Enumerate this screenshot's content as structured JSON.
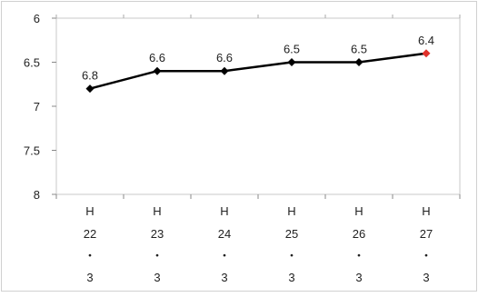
{
  "chart_data": {
    "type": "line",
    "title": "",
    "xlabel": "",
    "ylabel": "",
    "y_axis_inverted": true,
    "ylim": [
      6,
      8
    ],
    "yticks": [
      "6",
      "6.5",
      "7",
      "7.5",
      "8"
    ],
    "grid": false,
    "legend": "none",
    "categories": [
      [
        "H",
        "22",
        "・",
        "3"
      ],
      [
        "H",
        "23",
        "・",
        "3"
      ],
      [
        "H",
        "24",
        "・",
        "3"
      ],
      [
        "H",
        "25",
        "・",
        "3"
      ],
      [
        "H",
        "26",
        "・",
        "3"
      ],
      [
        "H",
        "27",
        "・",
        "3"
      ]
    ],
    "series": [
      {
        "values": [
          6.8,
          6.6,
          6.6,
          6.5,
          6.5,
          6.4
        ],
        "data_labels": [
          "6.8",
          "6.6",
          "6.6",
          "6.5",
          "6.5",
          "6.4"
        ],
        "color": "#000000",
        "highlight_last_point_color": "#e0312b"
      }
    ]
  }
}
